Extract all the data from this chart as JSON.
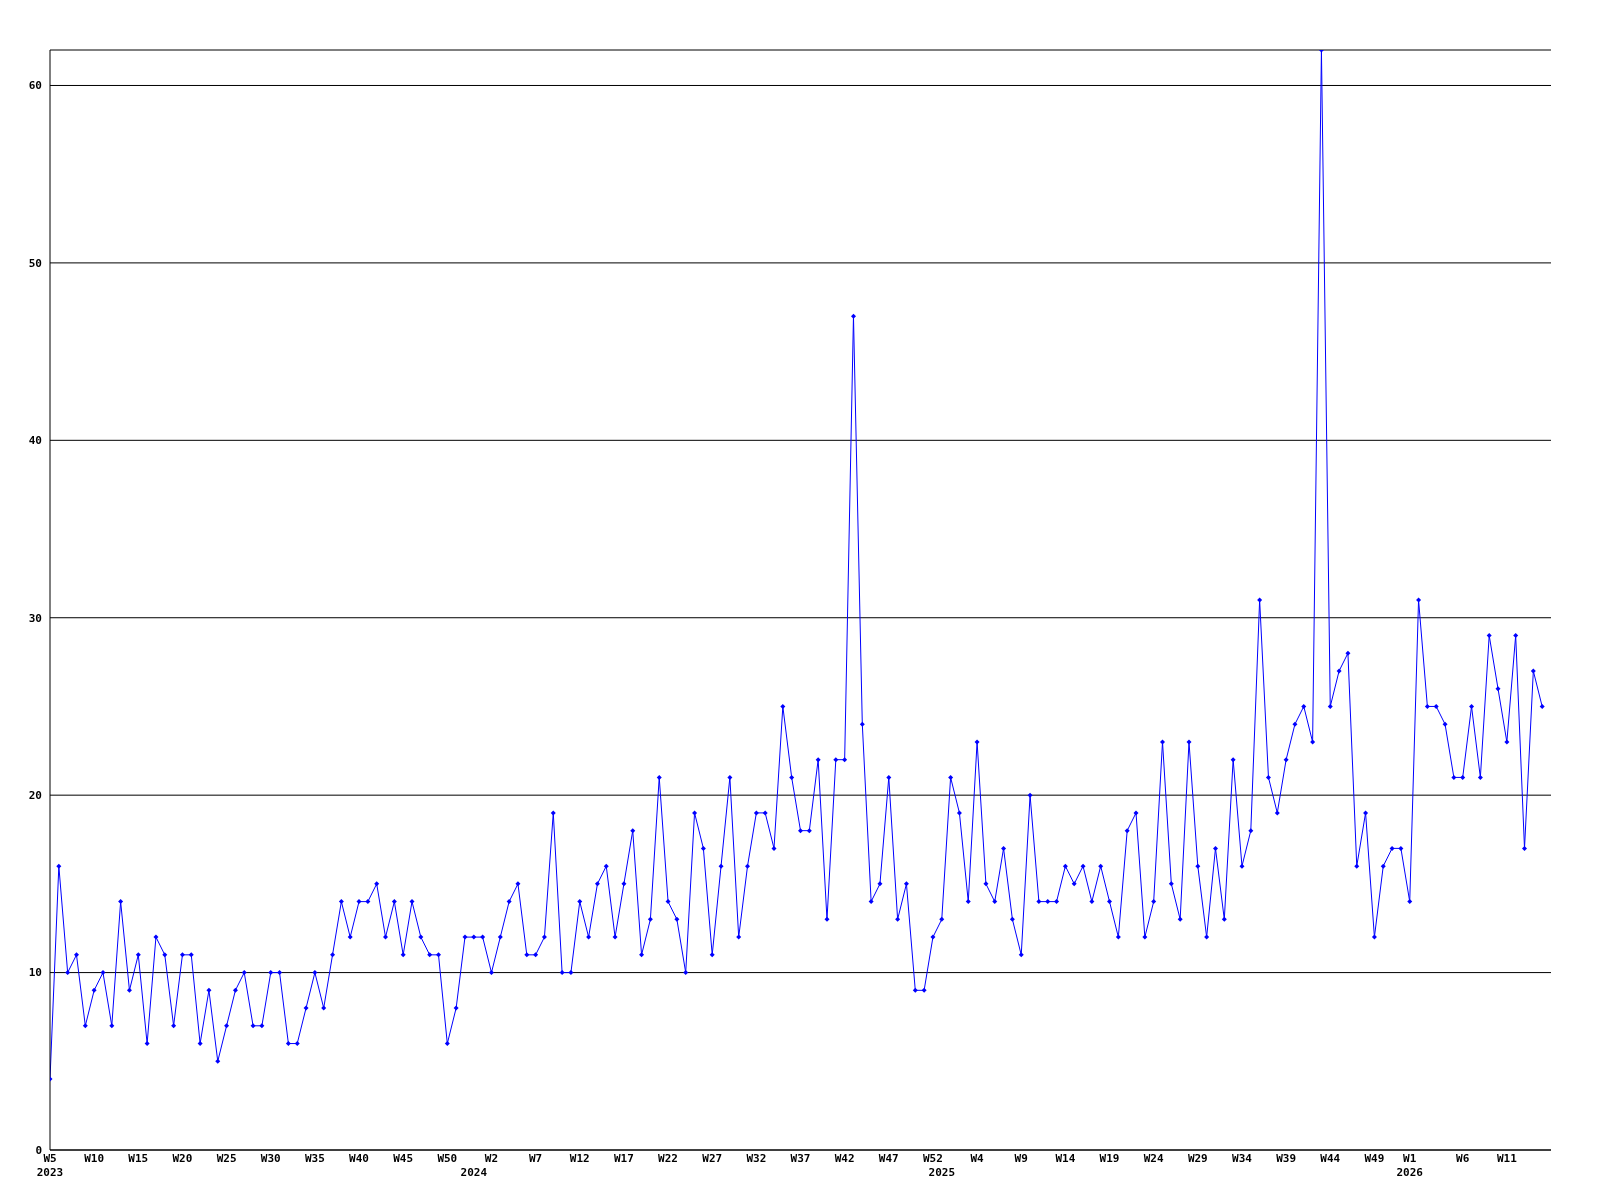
{
  "chart_data": {
    "type": "line",
    "categories": [
      "W5\n2023",
      null,
      null,
      null,
      null,
      "W10",
      null,
      null,
      null,
      null,
      "W15",
      null,
      null,
      null,
      null,
      "W20",
      null,
      null,
      null,
      null,
      "W25",
      null,
      null,
      null,
      null,
      "W30",
      null,
      null,
      null,
      null,
      "W35",
      null,
      null,
      null,
      null,
      "W40",
      null,
      null,
      null,
      null,
      "W45",
      null,
      null,
      null,
      null,
      "W50",
      null,
      null,
      "\n2024",
      null,
      "W2",
      null,
      null,
      null,
      null,
      "W7",
      null,
      null,
      null,
      null,
      "W12",
      null,
      null,
      null,
      null,
      "W17",
      null,
      null,
      null,
      null,
      "W22",
      null,
      null,
      null,
      null,
      "W27",
      null,
      null,
      null,
      null,
      "W32",
      null,
      null,
      null,
      null,
      "W37",
      null,
      null,
      null,
      null,
      "W42",
      null,
      null,
      null,
      null,
      "W47",
      null,
      null,
      null,
      null,
      "W52",
      "\n2025",
      null,
      null,
      null,
      "W4",
      null,
      null,
      null,
      null,
      "W9",
      null,
      null,
      null,
      null,
      "W14",
      null,
      null,
      null,
      null,
      "W19",
      null,
      null,
      null,
      null,
      "W24",
      null,
      null,
      null,
      null,
      "W29",
      null,
      null,
      null,
      null,
      "W34",
      null,
      null,
      null,
      null,
      "W39",
      null,
      null,
      null,
      null,
      "W44",
      null,
      null,
      null,
      null,
      "W49",
      null,
      null,
      null,
      "W1\n2026",
      null,
      null,
      null,
      null,
      null,
      "W6",
      null,
      null,
      null,
      null,
      "W11",
      null,
      null,
      null,
      null
    ],
    "series": [
      {
        "color": "#0000ff",
        "values": [
          4,
          16,
          10,
          11,
          7,
          9,
          10,
          7,
          14,
          9,
          11,
          6,
          12,
          11,
          7,
          11,
          11,
          6,
          9,
          5,
          7,
          9,
          10,
          7,
          7,
          10,
          10,
          6,
          6,
          8,
          10,
          8,
          11,
          14,
          12,
          14,
          14,
          15,
          12,
          14,
          11,
          14,
          12,
          11,
          11,
          6,
          8,
          12,
          12,
          12,
          10,
          12,
          14,
          15,
          11,
          11,
          12,
          19,
          10,
          10,
          14,
          12,
          15,
          16,
          12,
          15,
          18,
          11,
          13,
          21,
          14,
          13,
          10,
          19,
          17,
          11,
          16,
          21,
          12,
          16,
          19,
          19,
          17,
          25,
          21,
          18,
          18,
          22,
          13,
          22,
          22,
          47,
          24,
          14,
          15,
          21,
          13,
          15,
          9,
          9,
          12,
          13,
          21,
          19,
          14,
          23,
          15,
          14,
          17,
          13,
          11,
          20,
          14,
          14,
          14,
          16,
          15,
          16,
          14,
          16,
          14,
          12,
          18,
          19,
          12,
          14,
          23,
          15,
          13,
          23,
          16,
          12,
          17,
          13,
          22,
          16,
          18,
          31,
          21,
          19,
          22,
          24,
          25,
          23,
          62,
          25,
          27,
          28,
          16,
          19,
          12,
          16,
          17,
          17,
          14,
          31,
          25,
          25,
          24,
          21,
          21,
          25,
          21,
          29,
          26,
          23,
          29,
          17,
          27,
          25
        ]
      }
    ],
    "ylim": [
      0,
      62
    ],
    "yticks": [
      0,
      10,
      20,
      30,
      40,
      50,
      60
    ],
    "grid": "y",
    "marker": "diamond",
    "line_style": "solid"
  }
}
